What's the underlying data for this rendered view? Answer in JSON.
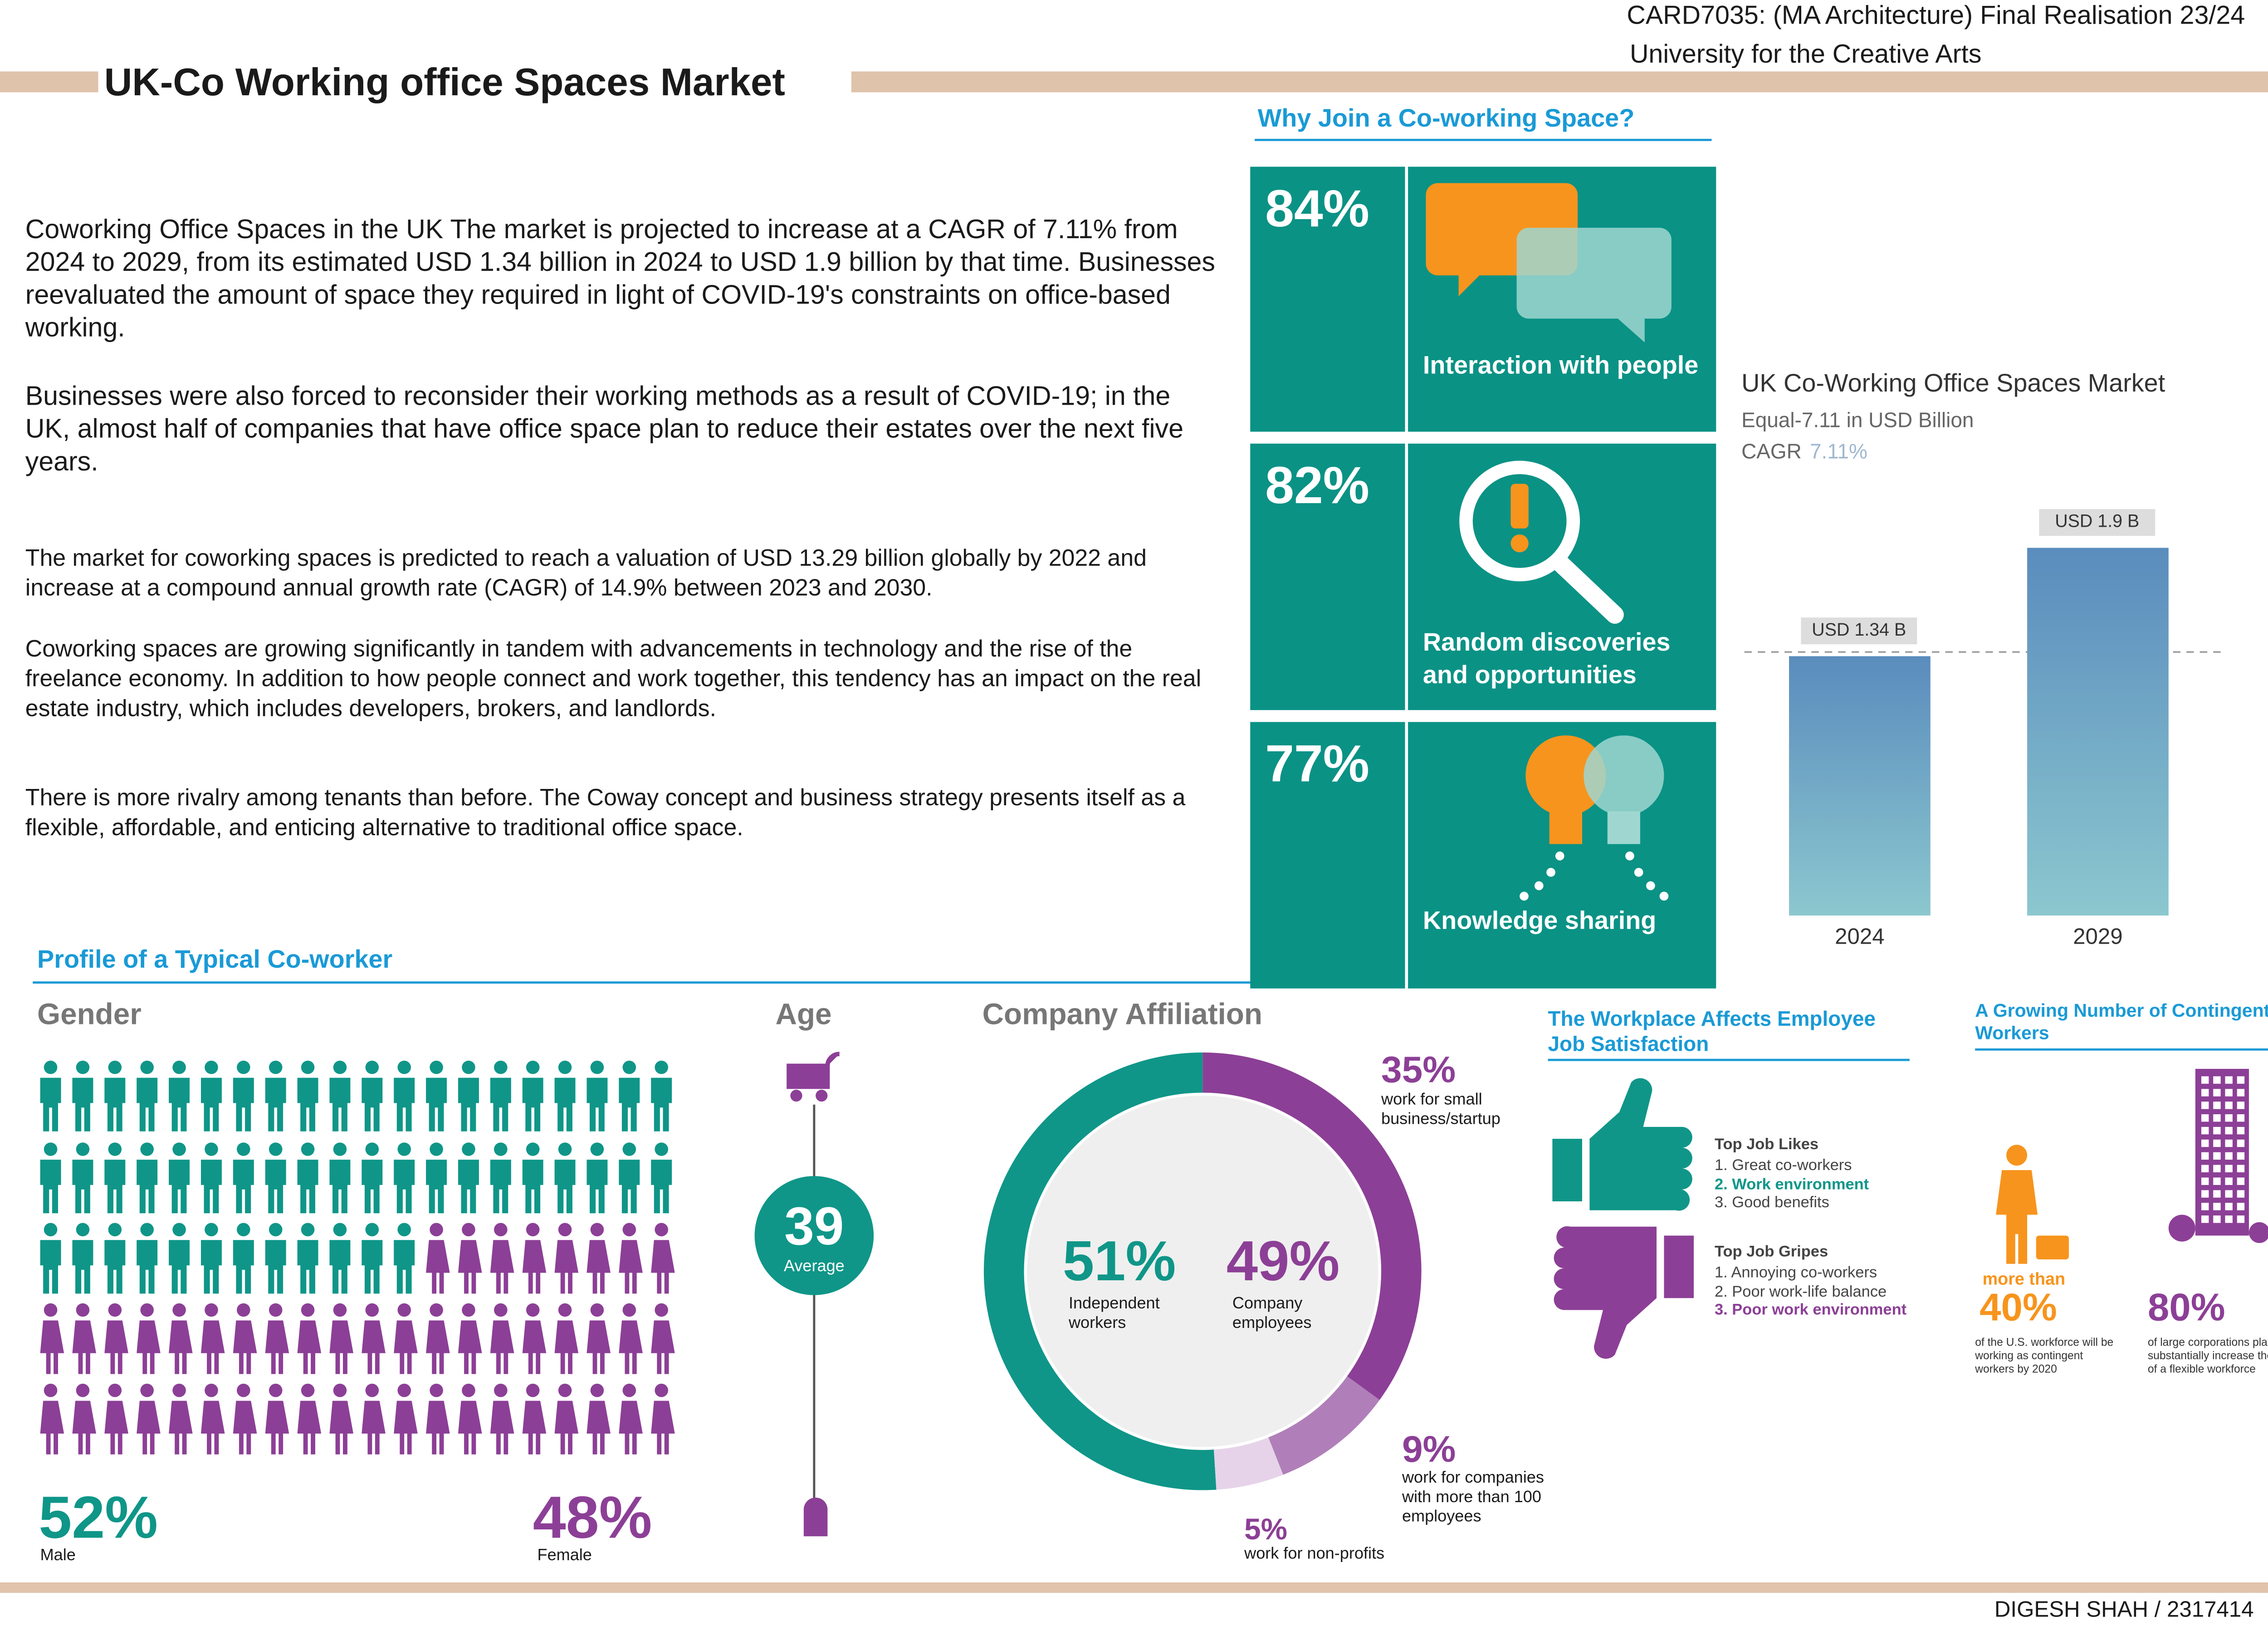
{
  "header": {
    "course": "CARD7035: (MA Architecture) Final Realisation 23/24",
    "university": "University for the Creative Arts",
    "title": "UK-Co Working office Spaces Market"
  },
  "intro": {
    "paragraphs": [
      "Coworking Office Spaces in the UK The market is projected to increase at a CAGR of 7.11% from 2024 to 2029, from its estimated USD 1.34 billion in 2024 to USD 1.9 billion by that time. Businesses reevaluated the amount of space they required in light of COVID-19's constraints on office-based working.",
      "Businesses were also forced to reconsider their working methods as a result of COVID-19; in the UK, almost half of companies that have office space plan to reduce their estates over the next five years.",
      "The market for coworking spaces is predicted to reach a valuation of USD 13.29 billion globally by 2022 and increase at a compound annual growth rate (CAGR) of 14.9% between 2023 and 2030.",
      "Coworking spaces are growing significantly in tandem with advancements in technology and the rise of the freelance economy. In addition to how people connect and work together, this tendency has an impact on the real estate industry, which includes developers, brokers, and landlords.",
      "There is more rivalry among tenants than before. The Coway concept and business strategy presents itself as a flexible, affordable, and enticing alternative to traditional office space."
    ]
  },
  "why_join": {
    "title": "Why Join a Co-working Space?",
    "items": [
      {
        "percent": "84%",
        "label": "Interaction with people"
      },
      {
        "percent": "82%",
        "label": "Random discoveries and opportunities"
      },
      {
        "percent": "77%",
        "label": "Knowledge sharing"
      }
    ]
  },
  "market_chart": {
    "type": "bar",
    "title": "UK Co-Working Office Spaces Market",
    "subtitle": "Equal-7.11 in USD Billion",
    "cagr_label": "CAGR",
    "cagr_value": "7.11%",
    "categories": [
      "2024",
      "2029"
    ],
    "values": [
      1.34,
      1.9
    ],
    "value_labels": [
      "USD 1.34 B",
      "USD 1.9 B"
    ]
  },
  "profile": {
    "title": "Profile of a Typical Co-worker",
    "gender": {
      "title": "Gender",
      "names": [
        "Male",
        "Female"
      ],
      "values": [
        52,
        48
      ],
      "value_labels": [
        "52%",
        "48%"
      ]
    },
    "age": {
      "title": "Age",
      "value": "39",
      "label": "Average"
    },
    "affiliation": {
      "title": "Company Affiliation",
      "names": [
        "Independent workers",
        "work for small business/startup",
        "work for companies with more than 100 employees",
        "work for non-profits"
      ],
      "values": [
        51,
        35,
        9,
        5
      ],
      "value_labels": [
        "51%",
        "35%",
        "9%",
        "5%"
      ],
      "company_percent": "49%",
      "company_label": "Company employees"
    }
  },
  "workplace": {
    "title": "The Workplace Affects Employee Job Satisfaction",
    "likes_title": "Top Job Likes",
    "likes": [
      "1. Great co-workers",
      "2. Work environment",
      "3. Good benefits"
    ],
    "gripes_title": "Top Job Gripes",
    "gripes": [
      "1. Annoying co-workers",
      "2. Poor work-life balance",
      "3. Poor work environment"
    ]
  },
  "contingent": {
    "title": "A Growing Number of Contingent Workers",
    "prefix": "more than",
    "stat1": "40%",
    "desc1": "of the U.S. workforce will be working as contingent workers by 2020",
    "stat2": "80%",
    "desc2": "of large corporations plan to substantially increase their use of a flexible workforce"
  },
  "footer": {
    "author": "DIGESH SHAH / 2317414"
  }
}
